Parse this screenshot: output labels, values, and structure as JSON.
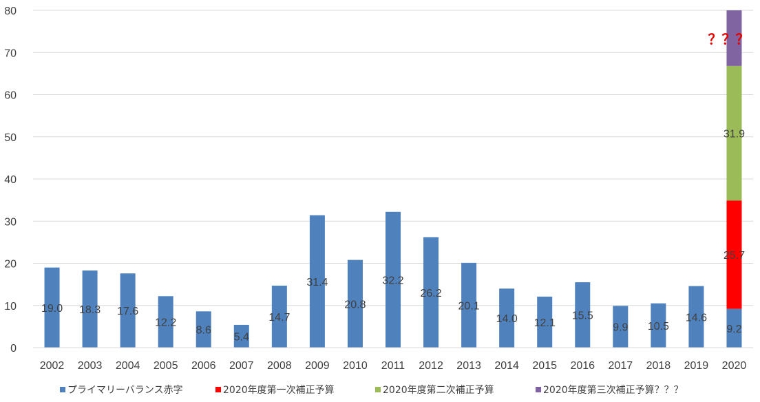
{
  "chart_data": {
    "type": "bar",
    "stacked": true,
    "categories": [
      "2002",
      "2003",
      "2004",
      "2005",
      "2006",
      "2007",
      "2008",
      "2009",
      "2010",
      "2011",
      "2012",
      "2013",
      "2014",
      "2015",
      "2016",
      "2017",
      "2018",
      "2019",
      "2020"
    ],
    "series": [
      {
        "name": "プライマリーバランス赤字",
        "color": "#4f81bd",
        "values": [
          19.0,
          18.3,
          17.6,
          12.2,
          8.6,
          5.4,
          14.7,
          31.4,
          20.8,
          32.2,
          26.2,
          20.1,
          14.0,
          12.1,
          15.5,
          9.9,
          10.5,
          14.6,
          9.2
        ]
      },
      {
        "name": "2020年度第一次補正予算",
        "color": "#ff0000",
        "values": [
          null,
          null,
          null,
          null,
          null,
          null,
          null,
          null,
          null,
          null,
          null,
          null,
          null,
          null,
          null,
          null,
          null,
          null,
          25.7
        ]
      },
      {
        "name": "2020年度第二次補正予算",
        "color": "#9bbb59",
        "values": [
          null,
          null,
          null,
          null,
          null,
          null,
          null,
          null,
          null,
          null,
          null,
          null,
          null,
          null,
          null,
          null,
          null,
          null,
          31.9
        ]
      },
      {
        "name": "2020年度第三次補正予算？？？",
        "color": "#8064a2",
        "values": [
          null,
          null,
          null,
          null,
          null,
          null,
          null,
          null,
          null,
          null,
          null,
          null,
          null,
          null,
          null,
          null,
          null,
          null,
          13.2
        ],
        "show_label": false
      }
    ],
    "ylim": [
      0,
      80
    ],
    "yticks": [
      "0",
      "10",
      "20",
      "30",
      "40",
      "50",
      "60",
      "70",
      "80"
    ],
    "grid": true,
    "legend_position": "bottom",
    "annotation": {
      "text": "？？？",
      "color": "#e00000"
    }
  }
}
